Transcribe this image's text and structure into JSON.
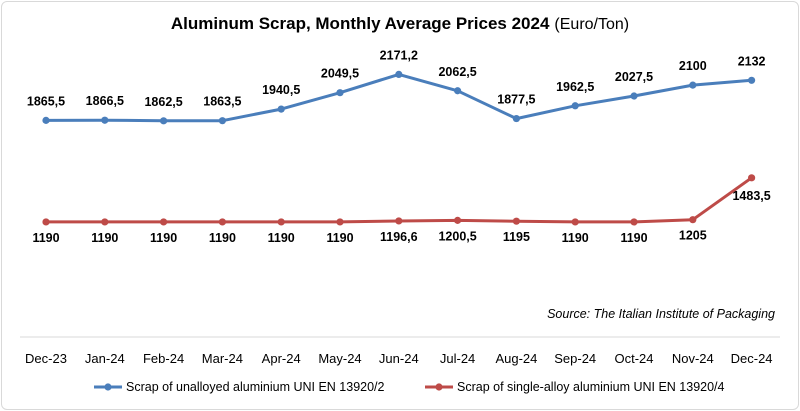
{
  "chart_data": {
    "type": "line",
    "title": "Aluminum Scrap, Monthly Average Prices 2024",
    "title_unit": "(Euro/Ton)",
    "source": "Source: The Italian Institute of Packaging",
    "categories": [
      "Dec-23",
      "Jan-24",
      "Feb-24",
      "Mar-24",
      "Apr-24",
      "May-24",
      "Jun-24",
      "Jul-24",
      "Aug-24",
      "Sep-24",
      "Oct-24",
      "Nov-24",
      "Dec-24"
    ],
    "series": [
      {
        "name": "Scrap of unalloyed aluminium UNI EN 13920/2",
        "color": "#4a7ebb",
        "values": [
          1865.5,
          1866.5,
          1862.5,
          1863.5,
          1940.5,
          2049.5,
          2171.2,
          2062.5,
          1877.5,
          1962.5,
          2027.5,
          2100,
          2132
        ],
        "labels": [
          "1865,5",
          "1866,5",
          "1862,5",
          "1863,5",
          "1940,5",
          "2049,5",
          "2171,2",
          "2062,5",
          "1877,5",
          "1962,5",
          "2027,5",
          "2100",
          "2132"
        ]
      },
      {
        "name": "Scrap of single-alloy aluminium UNI EN 13920/4",
        "color": "#be4b48",
        "values": [
          1190,
          1190,
          1190,
          1190,
          1190,
          1190,
          1196.6,
          1200.5,
          1195,
          1190,
          1190,
          1205,
          1483.5
        ],
        "labels": [
          "1190",
          "1190",
          "1190",
          "1190",
          "1190",
          "1190",
          "1196,6",
          "1200,5",
          "1195",
          "1190",
          "1190",
          "1205",
          "1483,5"
        ]
      }
    ],
    "ylim": [
      1050,
      2400
    ],
    "grid": false,
    "legend": "bottom"
  }
}
